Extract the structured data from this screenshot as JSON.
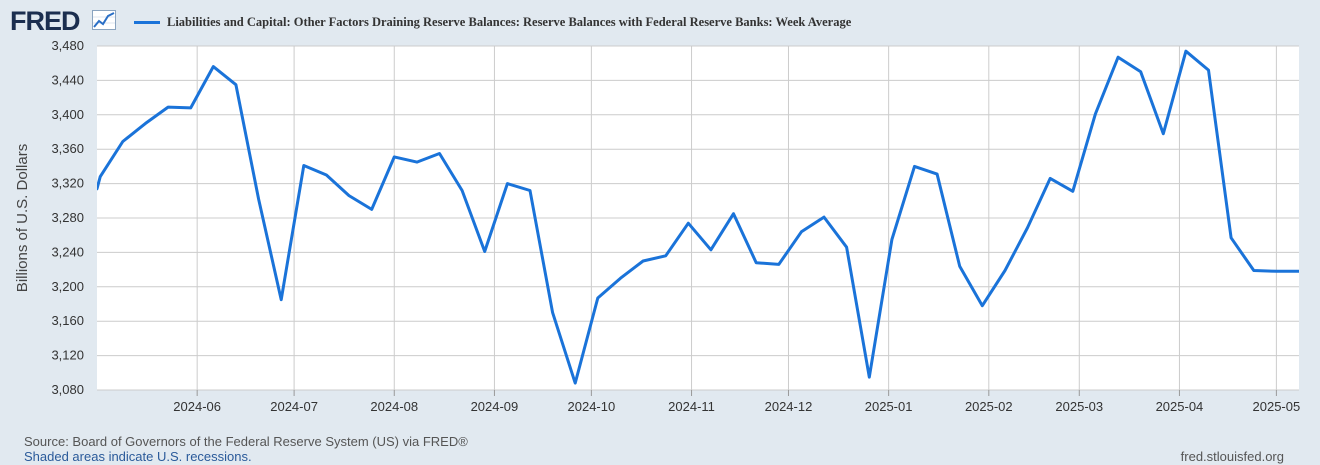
{
  "header": {
    "logo_text": "FRED",
    "logo_icon": "fred-graph-icon",
    "series_title": "Liabilities and Capital: Other Factors Draining Reserve Balances: Reserve Balances with Federal Reserve Banks: Week Average"
  },
  "colors": {
    "line": "#1a73d9",
    "background": "#e1e9f0",
    "plot_background": "#ffffff",
    "grid": "#cccccc",
    "logo": "#1b2e4f"
  },
  "chart_data": {
    "type": "line",
    "ylabel": "Billions of U.S. Dollars",
    "ylim": [
      3080,
      3480
    ],
    "y_ticks": [
      3080,
      3120,
      3160,
      3200,
      3240,
      3280,
      3320,
      3360,
      3400,
      3440,
      3480
    ],
    "y_tick_labels": [
      "3,080",
      "3,120",
      "3,160",
      "3,200",
      "3,240",
      "3,280",
      "3,320",
      "3,360",
      "3,400",
      "3,440",
      "3,480"
    ],
    "x_range": [
      "2024-05-01",
      "2025-05-08"
    ],
    "x_tick_dates": [
      "2024-06-01",
      "2024-07-01",
      "2024-08-01",
      "2024-09-01",
      "2024-10-01",
      "2024-11-01",
      "2024-12-01",
      "2025-01-01",
      "2025-02-01",
      "2025-03-01",
      "2025-04-01",
      "2025-05-01"
    ],
    "x_tick_labels": [
      "2024-06",
      "2024-07",
      "2024-08",
      "2024-09",
      "2024-10",
      "2024-11",
      "2024-12",
      "2025-01",
      "2025-02",
      "2025-03",
      "2025-04",
      "2025-05"
    ],
    "grid": true,
    "legend": "top",
    "series": [
      {
        "x": [
          "2024-05-01",
          "2024-05-02",
          "2024-05-09",
          "2024-05-16",
          "2024-05-23",
          "2024-05-30",
          "2024-06-06",
          "2024-06-13",
          "2024-06-20",
          "2024-06-27",
          "2024-07-04",
          "2024-07-11",
          "2024-07-18",
          "2024-07-25",
          "2024-08-01",
          "2024-08-08",
          "2024-08-15",
          "2024-08-22",
          "2024-08-29",
          "2024-09-05",
          "2024-09-12",
          "2024-09-19",
          "2024-09-26",
          "2024-10-03",
          "2024-10-10",
          "2024-10-17",
          "2024-10-24",
          "2024-10-31",
          "2024-11-07",
          "2024-11-14",
          "2024-11-21",
          "2024-11-28",
          "2024-12-05",
          "2024-12-12",
          "2024-12-19",
          "2024-12-26",
          "2025-01-02",
          "2025-01-09",
          "2025-01-16",
          "2025-01-23",
          "2025-01-30",
          "2025-02-06",
          "2025-02-13",
          "2025-02-20",
          "2025-02-27",
          "2025-03-06",
          "2025-03-13",
          "2025-03-20",
          "2025-03-27",
          "2025-04-03",
          "2025-04-10",
          "2025-04-17",
          "2025-04-24",
          "2025-05-01",
          "2025-05-08"
        ],
        "values": [
          3314,
          3328,
          3369,
          3390,
          3409,
          3408,
          3456,
          3435,
          3302,
          3185,
          3341,
          3330,
          3306,
          3290,
          3351,
          3345,
          3355,
          3312,
          3241,
          3320,
          3312,
          3170,
          3088,
          3187,
          3210,
          3230,
          3236,
          3274,
          3243,
          3285,
          3228,
          3226,
          3264,
          3281,
          3246,
          3095,
          3255,
          3340,
          3331,
          3224,
          3178,
          3219,
          3269,
          3326,
          3311,
          3401,
          3467,
          3450,
          3378,
          3474,
          3452,
          3257,
          3219,
          3218,
          3218
        ]
      }
    ]
  },
  "footer": {
    "source": "Source: Board of Governors of the Federal Reserve System (US) via FRED®",
    "shaded": "Shaded areas indicate U.S. recessions.",
    "site": "fred.stlouisfed.org"
  }
}
